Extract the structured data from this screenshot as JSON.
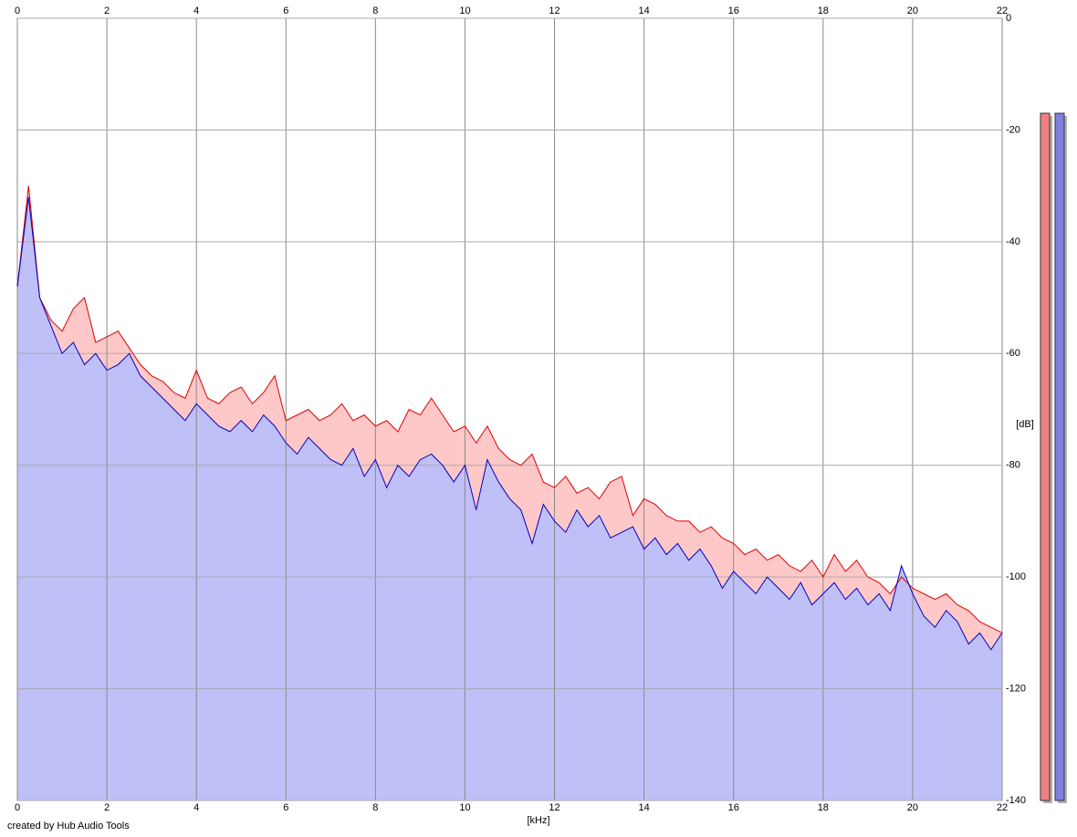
{
  "chart_data": {
    "type": "area",
    "x_label": "[kHz]",
    "y_label": "[dB]",
    "credit": "created by Hub Audio Tools",
    "x": [
      0,
      0.25,
      0.5,
      0.75,
      1,
      1.25,
      1.5,
      1.75,
      2,
      2.25,
      2.5,
      2.75,
      3,
      3.25,
      3.5,
      3.75,
      4,
      4.25,
      4.5,
      4.75,
      5,
      5.25,
      5.5,
      5.75,
      6,
      6.25,
      6.5,
      6.75,
      7,
      7.25,
      7.5,
      7.75,
      8,
      8.25,
      8.5,
      8.75,
      9,
      9.25,
      9.5,
      9.75,
      10,
      10.25,
      10.5,
      10.75,
      11,
      11.25,
      11.5,
      11.75,
      12,
      12.25,
      12.5,
      12.75,
      13,
      13.25,
      13.5,
      13.75,
      14,
      14.25,
      14.5,
      14.75,
      15,
      15.25,
      15.5,
      15.75,
      16,
      16.25,
      16.5,
      16.75,
      17,
      17.25,
      17.5,
      17.75,
      18,
      18.25,
      18.5,
      18.75,
      19,
      19.25,
      19.5,
      19.75,
      20,
      20.25,
      20.5,
      20.75,
      21,
      21.25,
      21.5,
      21.75,
      22
    ],
    "series": [
      {
        "color": "#e00000",
        "fill": "#ffc8c8",
        "values": [
          -48,
          -30,
          -50,
          -54,
          -56,
          -52,
          -50,
          -58,
          -57,
          -56,
          -59,
          -62,
          -64,
          -65,
          -67,
          -68,
          -63,
          -68,
          -69,
          -67,
          -66,
          -69,
          -67,
          -64,
          -72,
          -71,
          -70,
          -72,
          -71,
          -69,
          -72,
          -71,
          -73,
          -72,
          -74,
          -70,
          -71,
          -68,
          -71,
          -74,
          -73,
          -76,
          -73,
          -77,
          -79,
          -80,
          -78,
          -83,
          -84,
          -82,
          -85,
          -84,
          -86,
          -83,
          -82,
          -89,
          -86,
          -87,
          -89,
          -90,
          -90,
          -92,
          -91,
          -93,
          -94,
          -96,
          -95,
          -97,
          -96,
          -98,
          -99,
          -97,
          -100,
          -96,
          -99,
          -97,
          -100,
          -101,
          -103,
          -100,
          -102,
          -103,
          -104,
          -103,
          -105,
          -106,
          -108,
          -109,
          -110
        ]
      },
      {
        "color": "#0000c0",
        "fill": "#c0c0f8",
        "values": [
          -48,
          -32,
          -50,
          -55,
          -60,
          -58,
          -62,
          -60,
          -63,
          -62,
          -60,
          -64,
          -66,
          -68,
          -70,
          -72,
          -69,
          -71,
          -73,
          -74,
          -72,
          -74,
          -71,
          -73,
          -76,
          -78,
          -75,
          -77,
          -79,
          -80,
          -77,
          -82,
          -79,
          -84,
          -80,
          -82,
          -79,
          -78,
          -80,
          -83,
          -80,
          -88,
          -79,
          -83,
          -86,
          -88,
          -94,
          -87,
          -90,
          -92,
          -88,
          -91,
          -89,
          -93,
          -92,
          -91,
          -95,
          -93,
          -96,
          -94,
          -97,
          -95,
          -98,
          -102,
          -99,
          -101,
          -103,
          -100,
          -102,
          -104,
          -101,
          -105,
          -103,
          -101,
          -104,
          -102,
          -105,
          -103,
          -106,
          -98,
          -103,
          -107,
          -109,
          -106,
          -108,
          -112,
          -110,
          -113,
          -110
        ]
      }
    ],
    "meters": [
      {
        "color": "#f08080",
        "value": -17
      },
      {
        "color": "#8080e0",
        "value": -17
      }
    ],
    "xlim": [
      0,
      22
    ],
    "xticks": [
      0,
      2,
      4,
      6,
      8,
      10,
      12,
      14,
      16,
      18,
      20,
      22
    ],
    "ylim": [
      -140,
      0
    ],
    "yticks": [
      0,
      -20,
      -40,
      -60,
      -80,
      -100,
      -120,
      -140
    ],
    "grid": true
  }
}
